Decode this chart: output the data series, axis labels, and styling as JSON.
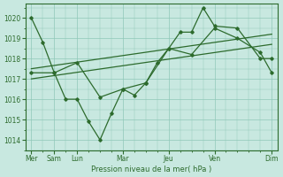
{
  "background_color": "#c8e8e0",
  "grid_color": "#8fc8b8",
  "line_color": "#2d6b2d",
  "xlabel": "Pression niveau de la mer( hPa )",
  "ylim": [
    1013.5,
    1020.7
  ],
  "yticks": [
    1014,
    1015,
    1016,
    1017,
    1018,
    1019,
    1020
  ],
  "series1_x": [
    0,
    1,
    2,
    3,
    4,
    5,
    6,
    7,
    8,
    9,
    10,
    11,
    12,
    13,
    14,
    15,
    16,
    18,
    20,
    21
  ],
  "series1_y": [
    1020.0,
    1018.8,
    1017.3,
    1016.0,
    1016.0,
    1014.9,
    1014.0,
    1015.3,
    1016.5,
    1016.2,
    1016.8,
    1017.8,
    1018.5,
    1019.3,
    1019.3,
    1020.5,
    1019.6,
    1019.5,
    1018.0,
    1018.0
  ],
  "series2_x": [
    0,
    2,
    4,
    6,
    8,
    10,
    12,
    14,
    16,
    18,
    20,
    21
  ],
  "series2_y": [
    1017.3,
    1017.3,
    1017.8,
    1016.1,
    1016.5,
    1016.8,
    1018.5,
    1018.2,
    1019.5,
    1019.0,
    1018.3,
    1017.3
  ],
  "trend1_x": [
    0,
    21
  ],
  "trend1_y": [
    1017.5,
    1019.2
  ],
  "trend2_x": [
    0,
    21
  ],
  "trend2_y": [
    1017.0,
    1018.7
  ],
  "xtick_major_pos": [
    0,
    2,
    4,
    8,
    12,
    16,
    21
  ],
  "xtick_major_labels": [
    "Mer",
    "Sam",
    "Lun",
    "Mar",
    "Jeu",
    "Ven",
    "Dim"
  ],
  "xlim": [
    -0.5,
    21.5
  ]
}
